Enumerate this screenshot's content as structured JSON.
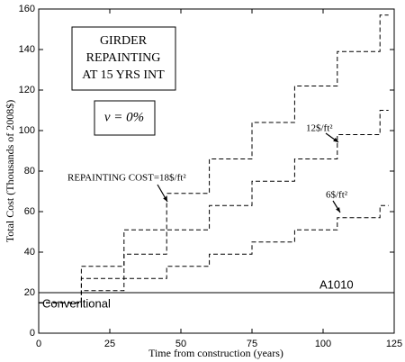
{
  "chart_data": {
    "type": "line",
    "title_lines": [
      "GIRDER",
      "REPAINTING",
      "AT 15 YRS INT"
    ],
    "subtitle": "ν = 0%",
    "xlabel": "Time from construction (years)",
    "ylabel": "Total Cost (Thousands of 2008$)",
    "xlim": [
      0,
      125
    ],
    "ylim": [
      0,
      160
    ],
    "xticks": [
      0,
      25,
      50,
      75,
      100,
      125
    ],
    "yticks": [
      0,
      20,
      40,
      60,
      80,
      100,
      120,
      140,
      160
    ],
    "series": [
      {
        "name": "REPAINTING COST=18$/ft²",
        "color": "#000",
        "dashed": true,
        "x": [
          0,
          15,
          15,
          30,
          30,
          45,
          45,
          60,
          60,
          75,
          75,
          90,
          90,
          105,
          105,
          120,
          120,
          123
        ],
        "values": [
          15,
          15,
          33,
          33,
          51,
          51,
          69,
          69,
          86,
          86,
          104,
          104,
          122,
          122,
          139,
          139,
          157,
          157
        ]
      },
      {
        "name": "12$/ft²",
        "color": "#000",
        "dashed": true,
        "x": [
          0,
          15,
          15,
          30,
          30,
          45,
          45,
          60,
          60,
          75,
          75,
          90,
          90,
          105,
          105,
          120,
          120,
          123
        ],
        "values": [
          15,
          15,
          27,
          27,
          39,
          39,
          51,
          51,
          63,
          63,
          75,
          75,
          86,
          86,
          98,
          98,
          110,
          110
        ]
      },
      {
        "name": "6$/ft²",
        "color": "#000",
        "dashed": true,
        "x": [
          0,
          15,
          15,
          30,
          30,
          45,
          45,
          60,
          60,
          75,
          75,
          90,
          90,
          105,
          105,
          120,
          120,
          123
        ],
        "values": [
          15,
          15,
          21,
          21,
          27,
          27,
          33,
          33,
          39,
          39,
          45,
          45,
          51,
          51,
          57,
          57,
          63,
          63
        ]
      },
      {
        "name": "A1010",
        "color": "#000",
        "dashed": false,
        "x": [
          0,
          125
        ],
        "values": [
          20,
          20
        ]
      }
    ],
    "annotations": [
      "Conventional"
    ]
  }
}
